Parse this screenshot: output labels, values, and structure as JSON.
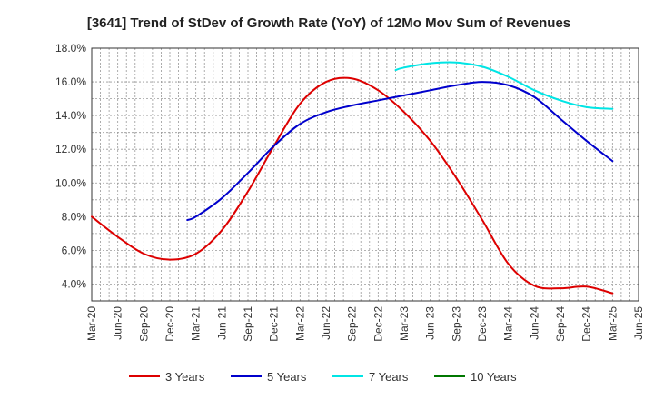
{
  "chart_data": {
    "type": "line",
    "title": "[3641]  Trend of StDev of Growth Rate (YoY) of 12Mo Mov Sum of Revenues",
    "xlabel": "",
    "ylabel": "",
    "ylim": [
      3.0,
      18.0
    ],
    "y_ticks": [
      "4.0%",
      "6.0%",
      "8.0%",
      "10.0%",
      "12.0%",
      "14.0%",
      "16.0%",
      "18.0%"
    ],
    "y_tick_values": [
      4,
      6,
      8,
      10,
      12,
      14,
      16,
      18
    ],
    "x_tick_labels": [
      "Mar-20",
      "Jun-20",
      "Sep-20",
      "Dec-20",
      "Mar-21",
      "Jun-21",
      "Sep-21",
      "Dec-21",
      "Mar-22",
      "Jun-22",
      "Sep-22",
      "Dec-22",
      "Mar-23",
      "Jun-23",
      "Sep-23",
      "Dec-23",
      "Mar-24",
      "Jun-24",
      "Sep-24",
      "Dec-24",
      "Mar-25",
      "Jun-25"
    ],
    "grid": true,
    "legend_position": "bottom",
    "series": [
      {
        "name": "3 Years",
        "color": "#dd0000",
        "points": [
          [
            0,
            8.0
          ],
          [
            1,
            6.8
          ],
          [
            2,
            5.8
          ],
          [
            3,
            5.45
          ],
          [
            4,
            5.8
          ],
          [
            5,
            7.2
          ],
          [
            6,
            9.5
          ],
          [
            7,
            12.2
          ],
          [
            8,
            14.7
          ],
          [
            9,
            16.0
          ],
          [
            10,
            16.2
          ],
          [
            11,
            15.5
          ],
          [
            12,
            14.2
          ],
          [
            13,
            12.5
          ],
          [
            14,
            10.3
          ],
          [
            15,
            7.8
          ],
          [
            16,
            5.2
          ],
          [
            17,
            3.9
          ],
          [
            18,
            3.75
          ],
          [
            19,
            3.85
          ],
          [
            20,
            3.45
          ]
        ]
      },
      {
        "name": "5 Years",
        "color": "#0000cc",
        "points": [
          [
            3.67,
            7.8
          ],
          [
            4,
            8.0
          ],
          [
            5,
            9.1
          ],
          [
            6,
            10.6
          ],
          [
            7,
            12.2
          ],
          [
            8,
            13.5
          ],
          [
            9,
            14.2
          ],
          [
            10,
            14.6
          ],
          [
            11,
            14.9
          ],
          [
            12,
            15.2
          ],
          [
            13,
            15.5
          ],
          [
            14,
            15.8
          ],
          [
            15,
            16.0
          ],
          [
            16,
            15.8
          ],
          [
            17,
            15.1
          ],
          [
            18,
            13.8
          ],
          [
            19,
            12.5
          ],
          [
            20,
            11.3
          ]
        ]
      },
      {
        "name": "7 Years",
        "color": "#00e5e5",
        "points": [
          [
            11.67,
            16.7
          ],
          [
            12,
            16.85
          ],
          [
            13,
            17.1
          ],
          [
            14,
            17.15
          ],
          [
            15,
            16.9
          ],
          [
            16,
            16.3
          ],
          [
            17,
            15.5
          ],
          [
            18,
            14.9
          ],
          [
            19,
            14.5
          ],
          [
            20,
            14.4
          ]
        ]
      },
      {
        "name": "10 Years",
        "color": "#007700",
        "points": []
      }
    ]
  }
}
